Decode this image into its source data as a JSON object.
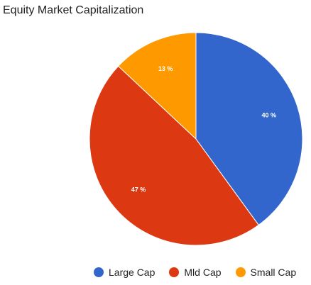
{
  "chart_data": {
    "type": "pie",
    "title": "Equity Market Capitalization",
    "categories": [
      "Large Cap",
      "Mld Cap",
      "Small Cap"
    ],
    "values": [
      40,
      47,
      13
    ],
    "labels": [
      "40 %",
      "47 %",
      "13 %"
    ],
    "colors": [
      "#3366cc",
      "#dc3912",
      "#ff9900"
    ],
    "legend_position": "bottom"
  }
}
